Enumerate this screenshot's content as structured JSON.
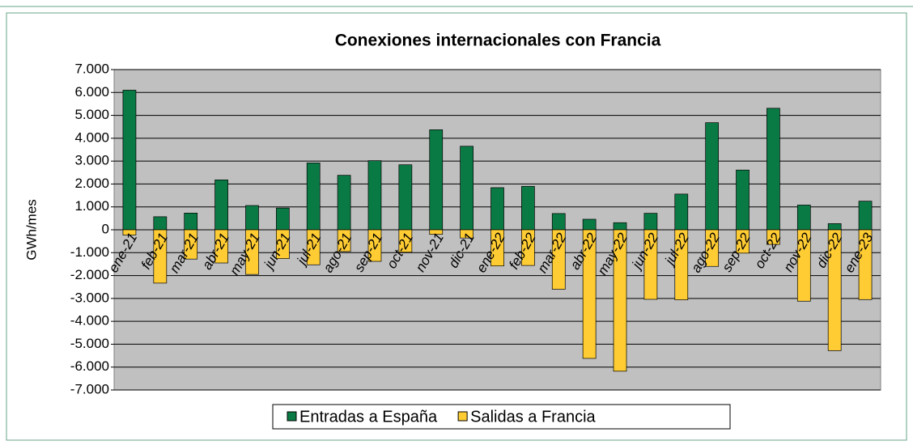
{
  "chart_data": {
    "type": "bar",
    "title": "Conexiones internacionales con Francia",
    "y_label": "GWh/mes",
    "categories": [
      "ene-21",
      "feb-21",
      "mar-21",
      "abr-21",
      "may-21",
      "jun-21",
      "jul-21",
      "ago-21",
      "sep-21",
      "oct-21",
      "nov-21",
      "dic-21",
      "ene-22",
      "feb-22",
      "mar-22",
      "abr-22",
      "may-22",
      "jun-22",
      "jul-22",
      "ago-22",
      "sep-22",
      "oct-22",
      "nov-22",
      "dic-22",
      "ene-23"
    ],
    "series": [
      {
        "name": "Entradas a España",
        "color": "#0a7a45",
        "values": [
          6100,
          570,
          730,
          2180,
          1060,
          950,
          2920,
          2380,
          3020,
          2840,
          4370,
          3650,
          1840,
          1900,
          710,
          460,
          310,
          720,
          1560,
          4680,
          2610,
          5310,
          1080,
          270,
          1250
        ]
      },
      {
        "name": "Salidas a Francia",
        "color": "#ffcc33",
        "values": [
          -230,
          -2330,
          -1280,
          -1450,
          -1950,
          -1260,
          -1530,
          -950,
          -1380,
          -980,
          -200,
          -360,
          -1580,
          -1560,
          -2600,
          -5620,
          -6180,
          -3040,
          -3060,
          -1600,
          -1020,
          -640,
          -3120,
          -5280,
          -3050
        ]
      }
    ],
    "ylim": [
      -7000,
      7000
    ],
    "yticks": [
      {
        "value": -7000,
        "label": "-7.000"
      },
      {
        "value": -6000,
        "label": "-6.000"
      },
      {
        "value": -5000,
        "label": "-5.000"
      },
      {
        "value": -4000,
        "label": "-4.000"
      },
      {
        "value": -3000,
        "label": "-3.000"
      },
      {
        "value": -2000,
        "label": "-2.000"
      },
      {
        "value": -1000,
        "label": "-1.000"
      },
      0,
      {
        "value": 1000,
        "label": "1.000"
      },
      {
        "value": 2000,
        "label": "2.000"
      },
      {
        "value": 3000,
        "label": "3.000"
      },
      {
        "value": 4000,
        "label": "4.000"
      },
      {
        "value": 5000,
        "label": "5.000"
      },
      {
        "value": 6000,
        "label": "6.000"
      },
      {
        "value": 7000,
        "label": "7.000"
      }
    ],
    "grid": true,
    "legend": "bottom"
  }
}
